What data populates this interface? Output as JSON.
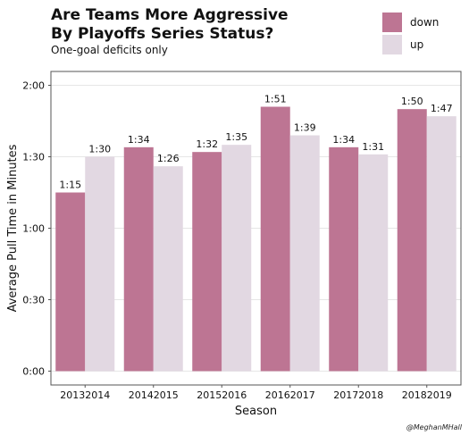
{
  "title_line1": "Are Teams More Aggressive",
  "title_line2": "By Playoffs Series Status?",
  "subtitle": "One-goal deficits only",
  "credit": "@MeghanMHall",
  "colors": {
    "down": "#bd7593",
    "up": "#e2d8e2",
    "grid": "#e6e6e6",
    "panel_border": "#555555"
  },
  "chart_data": {
    "type": "bar",
    "title": "Are Teams More Aggressive By Playoffs Series Status?",
    "subtitle": "One-goal deficits only",
    "xlabel": "Season",
    "ylabel": "Average Pull Time in Minutes",
    "categories": [
      "20132014",
      "20142015",
      "20152016",
      "20162017",
      "20172018",
      "20182019"
    ],
    "series": [
      {
        "name": "down",
        "values": [
          75,
          94,
          92,
          111,
          94,
          110
        ],
        "labels": [
          "1:15",
          "1:34",
          "1:32",
          "1:51",
          "1:34",
          "1:50"
        ]
      },
      {
        "name": "up",
        "values": [
          90,
          86,
          95,
          99,
          91,
          107
        ],
        "labels": [
          "1:30",
          "1:26",
          "1:35",
          "1:39",
          "1:31",
          "1:47"
        ]
      }
    ],
    "yunit": "seconds",
    "ylim": [
      0,
      129
    ],
    "yticks": [
      0,
      30,
      60,
      90,
      120
    ],
    "ytick_labels": [
      "0:00",
      "0:30",
      "1:00",
      "1:30",
      "2:00"
    ],
    "grid": true,
    "legend_position": "top-right"
  }
}
